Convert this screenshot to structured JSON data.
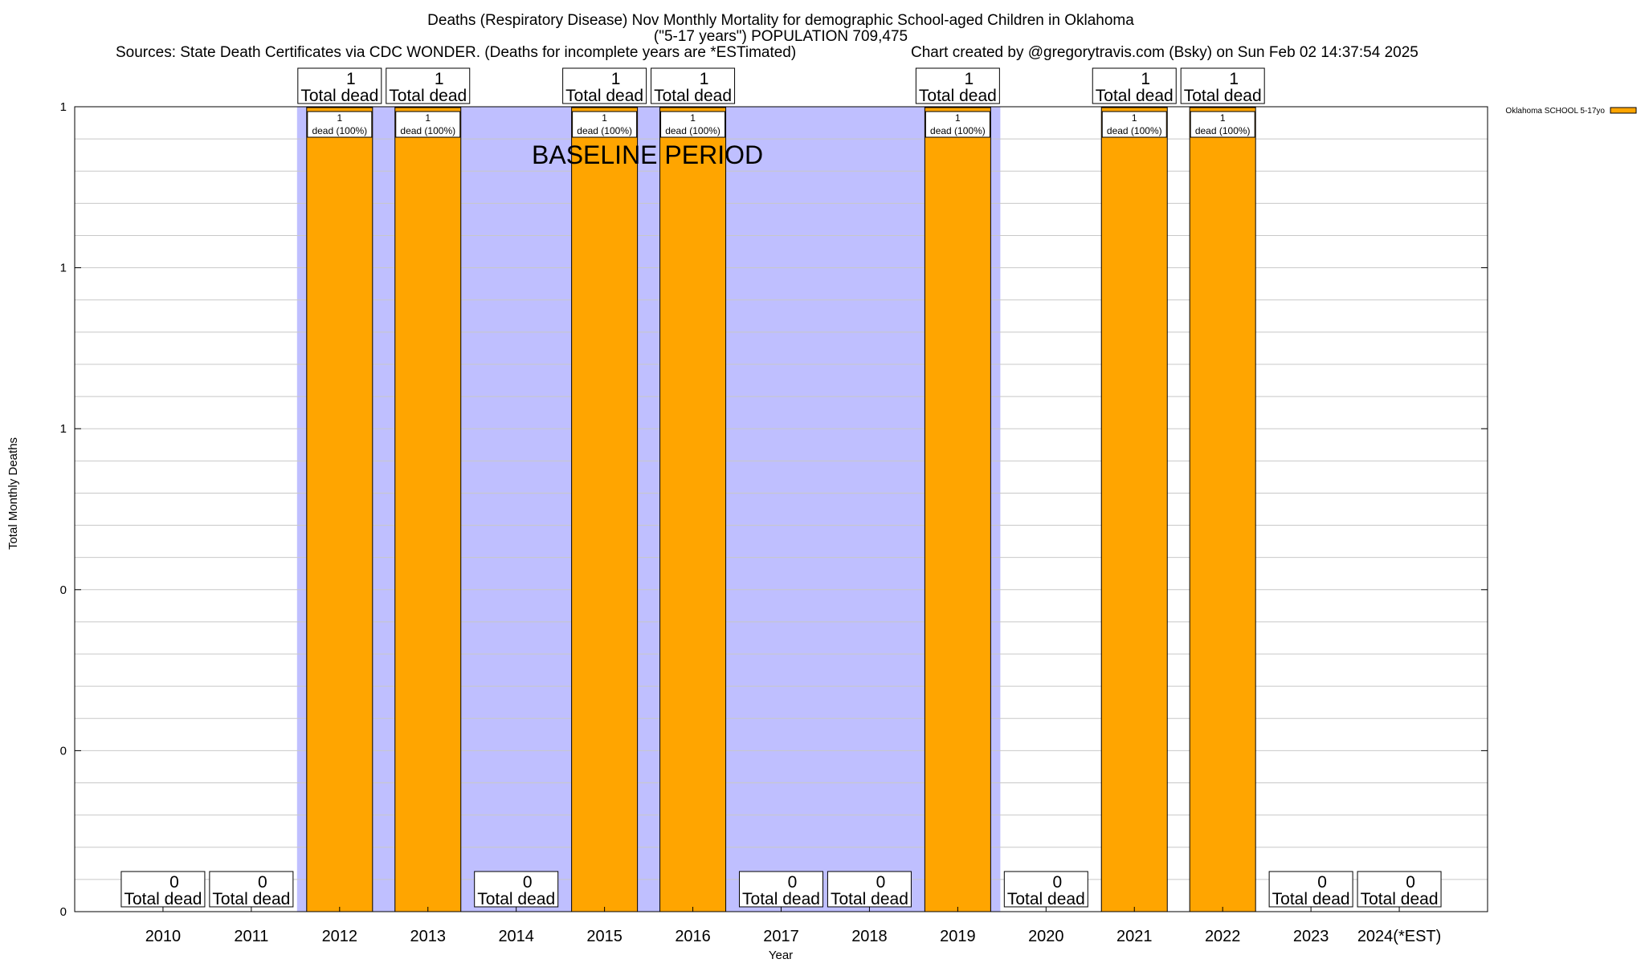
{
  "chart_data": {
    "type": "bar",
    "title_lines": [
      "Deaths (Respiratory Disease) Nov Monthly Mortality for demographic School-aged Children in Oklahoma",
      "(\"5-17 years\") POPULATION 709,475"
    ],
    "sources_text": "Sources: State Death Certificates via CDC WONDER. (Deaths for incomplete years are *ESTimated)",
    "credit_text": "Chart created by @gregorytravis.com (Bsky) on Sun Feb 02 14:37:54 2025",
    "xlabel": "Year",
    "ylabel": "Total Monthly Deaths",
    "ylim": [
      0,
      1
    ],
    "ytick_values": [
      0,
      0.2,
      0.4,
      0.6,
      0.8,
      1
    ],
    "ytick_labels": [
      "0",
      "0",
      "0",
      "1",
      "1",
      "1"
    ],
    "categories": [
      "2010",
      "2011",
      "2012",
      "2013",
      "2014",
      "2015",
      "2016",
      "2017",
      "2018",
      "2019",
      "2020",
      "2021",
      "2022",
      "2023",
      "2024(*EST)"
    ],
    "series": [
      {
        "name": "Oklahoma SCHOOL 5-17yo",
        "values": [
          0,
          0,
          1,
          1,
          0,
          1,
          1,
          0,
          0,
          1,
          0,
          1,
          1,
          0,
          0
        ]
      }
    ],
    "total_labels": [
      "0",
      "0",
      "1",
      "1",
      "0",
      "1",
      "1",
      "0",
      "0",
      "1",
      "0",
      "1",
      "1",
      "0",
      "0"
    ],
    "total_suffix": "Total dead",
    "inbar_labels": [
      "",
      "",
      "1|dead (100%)",
      "1|dead (100%)",
      "",
      "1|dead (100%)",
      "1|dead (100%)",
      "",
      "",
      "1|dead (100%)",
      "",
      "1|dead (100%)",
      "1|dead (100%)",
      "",
      ""
    ],
    "baseline_label": "BASELINE PERIOD",
    "baseline_range": [
      "2012",
      "2019"
    ],
    "grid": true,
    "legend_position": "top-right",
    "colors": {
      "bar_fill": "#FFA500",
      "baseline_shade": "#BFBFFF",
      "grid": "#c8c8c8",
      "axis": "#000000"
    }
  }
}
